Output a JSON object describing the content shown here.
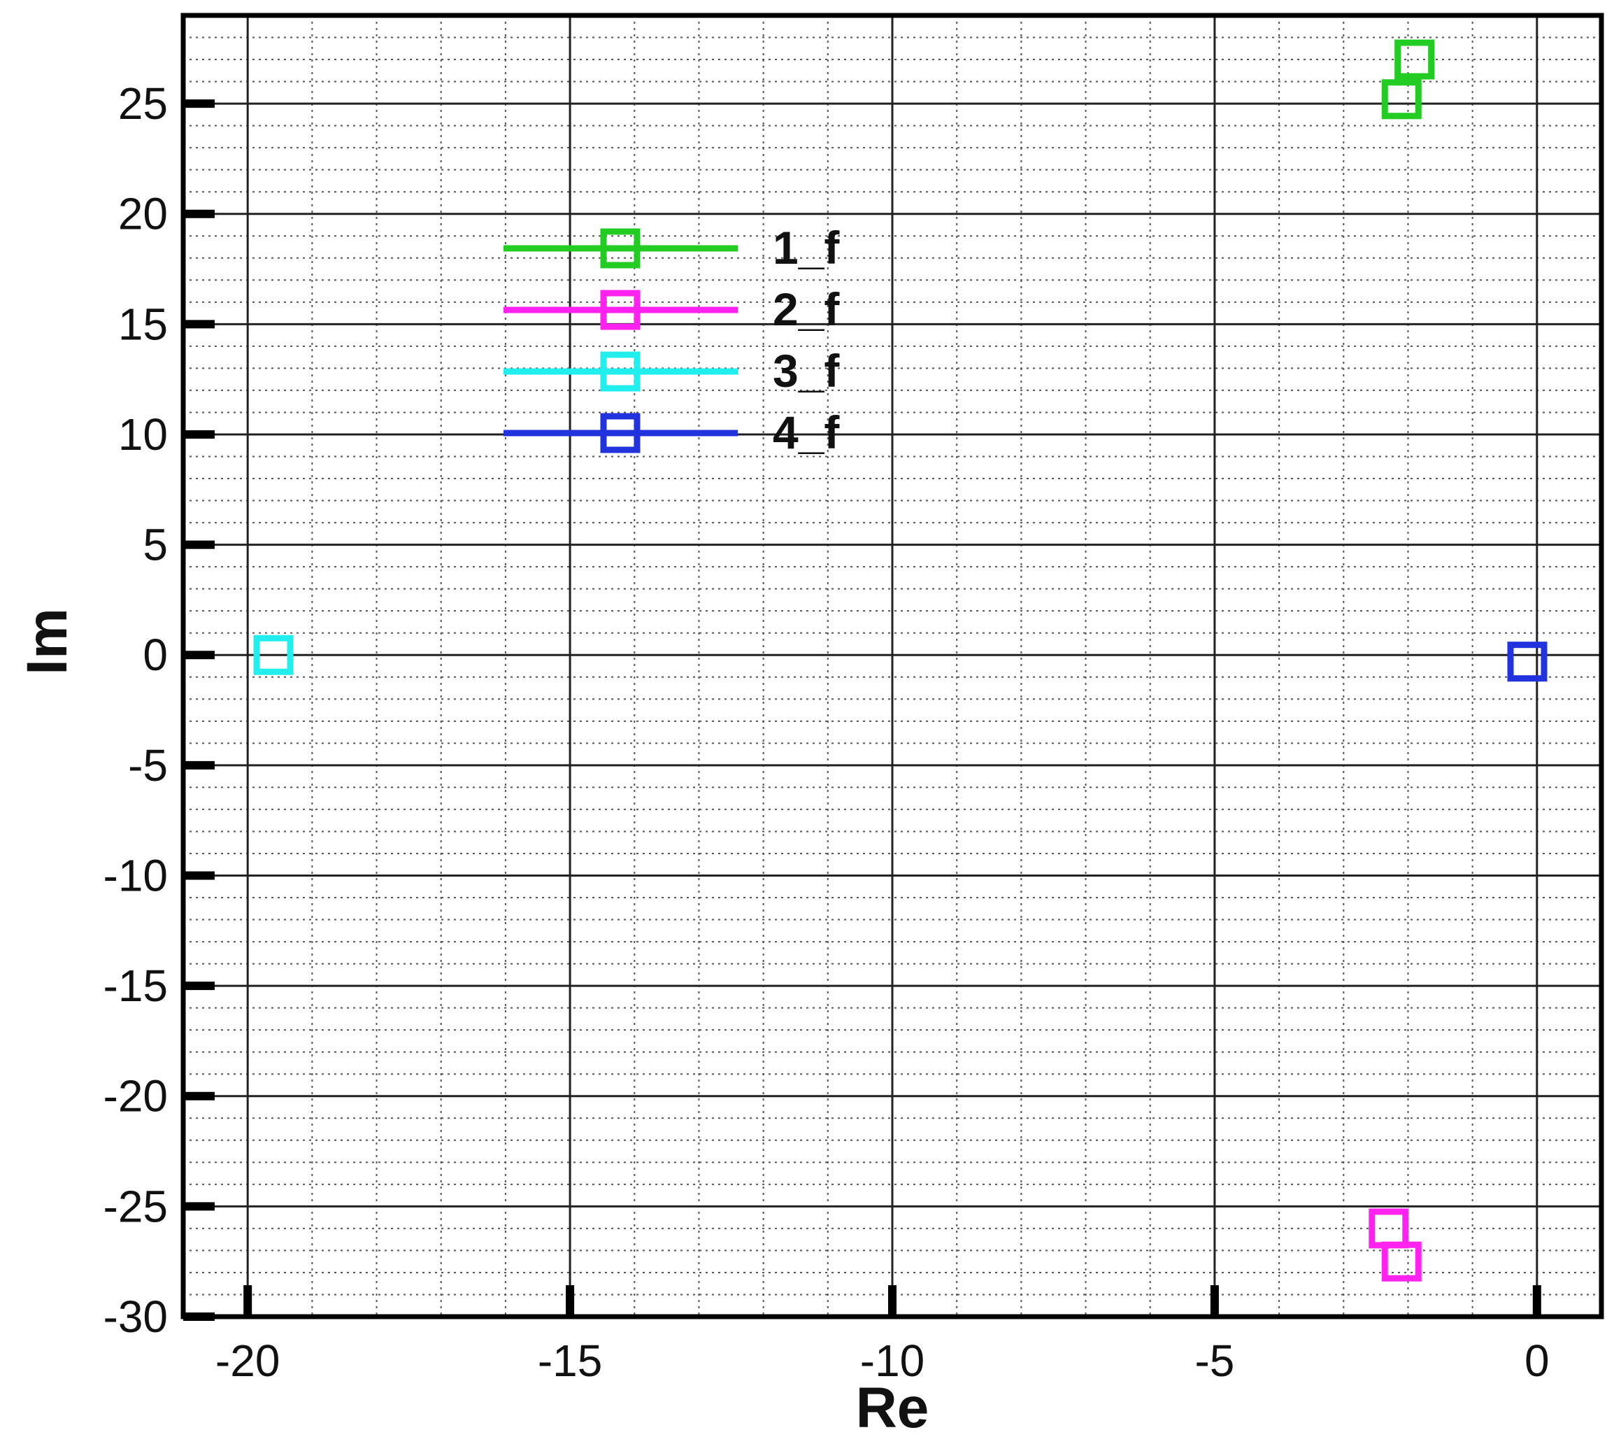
{
  "chart_data": {
    "type": "scatter",
    "xlabel": "Re",
    "ylabel": "Im",
    "xlim": [
      -21,
      1
    ],
    "ylim": [
      -30,
      29
    ],
    "x_ticks": [
      -20,
      -15,
      -10,
      -5,
      0
    ],
    "y_ticks": [
      -30,
      -25,
      -20,
      -15,
      -10,
      -5,
      0,
      5,
      10,
      15,
      20,
      25
    ],
    "x_tick_labels": [
      "-20",
      "-15",
      "-10",
      "-5",
      "0"
    ],
    "y_tick_labels": [
      "-30",
      "-25",
      "-20",
      "-15",
      "-10",
      "-5",
      "0",
      "5",
      "10",
      "15",
      "20",
      "25"
    ],
    "grid": true,
    "legend_position": "upper-left",
    "series": [
      {
        "name": "1_f",
        "color": "#22cc22",
        "marker": "square",
        "points": [
          {
            "x": -1.9,
            "y": 27.0
          },
          {
            "x": -2.1,
            "y": 25.2
          }
        ]
      },
      {
        "name": "2_f",
        "color": "#ff22ee",
        "marker": "square",
        "points": [
          {
            "x": -2.3,
            "y": -26.0
          },
          {
            "x": -2.1,
            "y": -27.5
          }
        ]
      },
      {
        "name": "3_f",
        "color": "#22eeee",
        "marker": "square",
        "points": [
          {
            "x": -19.6,
            "y": 0.0
          }
        ]
      },
      {
        "name": "4_f",
        "color": "#2233dd",
        "marker": "square",
        "points": [
          {
            "x": -0.15,
            "y": -0.3
          }
        ]
      }
    ]
  }
}
